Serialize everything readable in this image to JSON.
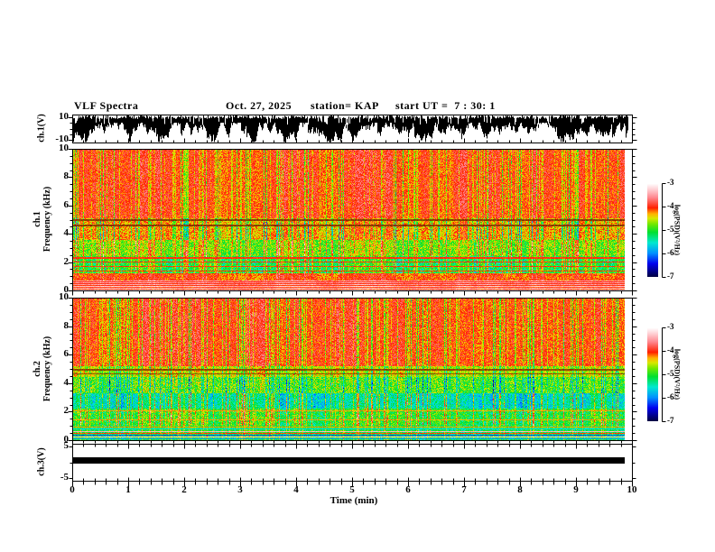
{
  "header": {
    "title": "VLF Spectra",
    "date": "Oct. 27, 2025",
    "station": "station= KAP",
    "start_ut": "start UT =  7 : 30: 1"
  },
  "panels": [
    {
      "name": "ch1-voltage",
      "ylabel": "ch.1(V)"
    },
    {
      "name": "ch1-spectrogram",
      "ylabel_channel": "ch.1",
      "ylabel_axis": "Frequency (kHz)"
    },
    {
      "name": "ch2-spectrogram",
      "ylabel_channel": "ch.2",
      "ylabel_axis": "Frequency (kHz)"
    },
    {
      "name": "ch3-voltage",
      "ylabel": "ch.3(V)"
    }
  ],
  "xaxis": {
    "label": "Time (min)",
    "min": 0,
    "max": 10,
    "major_ticks": [
      0,
      1,
      2,
      3,
      4,
      5,
      6,
      7,
      8,
      9,
      10
    ],
    "minor_interval": 0.2
  },
  "colorbars": [
    {
      "label": "log(PSD)(V²/Hz)",
      "ticks": [
        -3,
        -4,
        -5,
        -6,
        -7
      ]
    },
    {
      "label": "log(PSD)(V²/Hz)",
      "ticks": [
        -3,
        -4,
        -5,
        -6,
        -7
      ]
    }
  ],
  "colormap": {
    "zmin": -7,
    "zmax": -3,
    "stops": [
      {
        "v": -7.0,
        "c": "#000046"
      },
      {
        "v": -6.45,
        "c": "#0000ee"
      },
      {
        "v": -6.0,
        "c": "#0090ff"
      },
      {
        "v": -5.55,
        "c": "#00e8d0"
      },
      {
        "v": -5.1,
        "c": "#00e030"
      },
      {
        "v": -4.75,
        "c": "#70e800"
      },
      {
        "v": -4.5,
        "c": "#d8e800"
      },
      {
        "v": -4.3,
        "c": "#ffb000"
      },
      {
        "v": -4.05,
        "c": "#ff2000"
      },
      {
        "v": -3.6,
        "c": "#ff8890"
      },
      {
        "v": -3.25,
        "c": "#ffd0d4"
      },
      {
        "v": -3.0,
        "c": "#ffffff"
      }
    ]
  },
  "chart_data": [
    {
      "id": "ch1_waveform",
      "type": "line",
      "title": "ch.1(V) broadband waveform",
      "xlim": [
        0,
        10
      ],
      "ylim": [
        -10,
        10
      ],
      "yticks": [
        10,
        -10
      ],
      "seed": 91,
      "description": "Dense noisy signal; upper envelope near +10 V, lower envelope fluctuating between ~0 and -10 V",
      "envelope": {
        "top_typ": 9.5,
        "bottom_min": -10,
        "bottom_typ": 0
      }
    },
    {
      "id": "ch1_spectrogram",
      "type": "heatmap",
      "xlim": [
        0,
        10
      ],
      "ylim": [
        0,
        10
      ],
      "zlim": [
        -7,
        -3
      ],
      "yticks": [
        10,
        8,
        6,
        4,
        2,
        0
      ],
      "ytick_minor": 0.5,
      "seed": 1234,
      "bands": [
        {
          "f": [
            0,
            0.32
          ],
          "base": -3.35,
          "noise": 0.12,
          "sens": 0.05
        },
        {
          "f": [
            0.32,
            0.75
          ],
          "base": -3.55,
          "noise": 0.15,
          "sens": 0.1
        },
        {
          "f": [
            0.75,
            1.25
          ],
          "base": -4.15,
          "noise": 0.25,
          "sens": 0.2
        },
        {
          "f": [
            1.25,
            2.45
          ],
          "base": -5.05,
          "noise": 0.4,
          "sens": 0.75,
          "patch": -0.6
        },
        {
          "f": [
            2.45,
            3.6
          ],
          "base": -4.75,
          "noise": 0.4,
          "sens": 0.65,
          "patch": -0.3
        },
        {
          "f": [
            3.6,
            5.1
          ],
          "base": -4.25,
          "noise": 0.35,
          "sens": -0.85
        },
        {
          "f": [
            5.1,
            10.01
          ],
          "base": -4.0,
          "noise": 0.28,
          "sens": -0.5
        }
      ],
      "lines": [
        {
          "f": 5.0,
          "hw": 0.05,
          "level": -4.2,
          "dark": true
        },
        {
          "f": 4.62,
          "hw": 0.04,
          "level": -4.2,
          "dark": true
        },
        {
          "f": 2.32,
          "hw": 0.04,
          "level": -4.05
        },
        {
          "f": 2.02,
          "hw": 0.04,
          "level": -4.05
        },
        {
          "f": 1.72,
          "hw": 0.04,
          "level": -4.1
        },
        {
          "f": 1.42,
          "hw": 0.04,
          "level": -4.1
        },
        {
          "f": 0.62,
          "hw": 0.035,
          "level": -4.0
        },
        {
          "f": 0.5,
          "hw": 0.03,
          "level": -4.0
        },
        {
          "f": 0.38,
          "hw": 0.03,
          "level": -4.05
        },
        {
          "f": 0.26,
          "hw": 0.03,
          "level": -4.05
        },
        {
          "f": 0.14,
          "hw": 0.03,
          "level": -4.1
        }
      ]
    },
    {
      "id": "ch2_spectrogram",
      "type": "heatmap",
      "xlim": [
        0,
        10
      ],
      "ylim": [
        0,
        10
      ],
      "zlim": [
        -7,
        -3
      ],
      "yticks": [
        10,
        8,
        6,
        4,
        2,
        0
      ],
      "ytick_minor": 0.5,
      "seed": 5678,
      "bands": [
        {
          "f": [
            0,
            1.05
          ],
          "base": -5.2,
          "noise": 0.3,
          "sens": 0.4
        },
        {
          "f": [
            1.05,
            2.25
          ],
          "base": -5.0,
          "noise": 0.4,
          "sens": 0.7,
          "patch": -0.4
        },
        {
          "f": [
            2.25,
            3.3
          ],
          "base": -5.45,
          "noise": 0.35,
          "sens": 0.8,
          "patch": -0.5
        },
        {
          "f": [
            3.3,
            4.45
          ],
          "base": -4.8,
          "noise": 0.45,
          "sens": -0.7
        },
        {
          "f": [
            4.45,
            5.2
          ],
          "base": -4.5,
          "noise": 0.35,
          "sens": -0.55
        },
        {
          "f": [
            5.2,
            10.01
          ],
          "base": -4.0,
          "noise": 0.28,
          "sens": -0.55
        }
      ],
      "lines": [
        {
          "f": 4.95,
          "hw": 0.05,
          "level": -4.25,
          "dark": true
        },
        {
          "f": 4.68,
          "hw": 0.04,
          "level": -4.25,
          "dark": true
        },
        {
          "f": 2.1,
          "hw": 0.04,
          "level": -4.3
        },
        {
          "f": 1.45,
          "hw": 0.04,
          "level": -4.3
        },
        {
          "f": 0.95,
          "hw": 0.035,
          "level": -4.3
        },
        {
          "f": 0.8,
          "hw": 0.03,
          "level": -5.6
        },
        {
          "f": 0.66,
          "hw": 0.035,
          "level": -3.4
        },
        {
          "f": 0.53,
          "hw": 0.03,
          "level": -4.1
        },
        {
          "f": 0.4,
          "hw": 0.03,
          "level": -6.2
        },
        {
          "f": 0.28,
          "hw": 0.035,
          "level": -3.35
        },
        {
          "f": 0.15,
          "hw": 0.03,
          "level": -5.9
        }
      ]
    },
    {
      "id": "ch3_level",
      "type": "line",
      "title": "ch.3(V) status channel",
      "xlim": [
        0,
        10
      ],
      "ylim": [
        -5,
        5
      ],
      "yticks": [
        5,
        -5
      ],
      "description": "Constant dense band (solid black bar) spanning approximately -0.5 V to +1.5 V for the full record",
      "value_range": [
        1.5,
        -0.5
      ]
    }
  ]
}
